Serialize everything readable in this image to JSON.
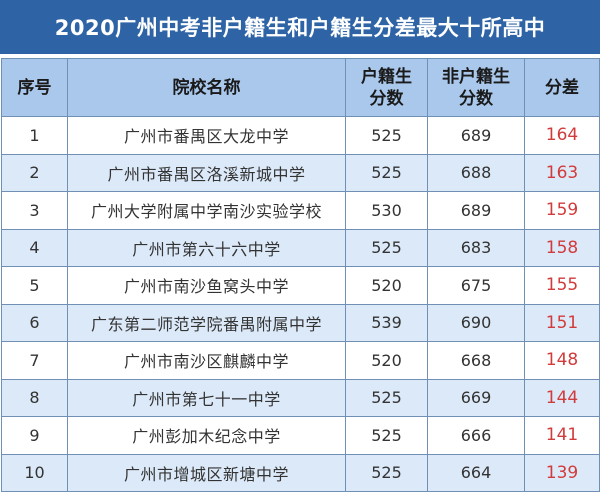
{
  "title": "2020广州中考非户籍生和户籍生分差最大十所高中",
  "headers": {
    "index": "序号",
    "school": "院校名称",
    "local_line1": "户籍生",
    "local_line2": "分数",
    "nonlocal_line1": "非户籍生",
    "nonlocal_line2": "分数",
    "diff": "分差"
  },
  "rows": [
    {
      "index": "1",
      "school": "广州市番禺区大龙中学",
      "local": "525",
      "nonlocal": "689",
      "diff": "164"
    },
    {
      "index": "2",
      "school": "广州市番禺区洛溪新城中学",
      "local": "525",
      "nonlocal": "688",
      "diff": "163"
    },
    {
      "index": "3",
      "school": "广州大学附属中学南沙实验学校",
      "local": "530",
      "nonlocal": "689",
      "diff": "159"
    },
    {
      "index": "4",
      "school": "广州市第六十六中学",
      "local": "525",
      "nonlocal": "683",
      "diff": "158"
    },
    {
      "index": "5",
      "school": "广州市南沙鱼窝头中学",
      "local": "520",
      "nonlocal": "675",
      "diff": "155"
    },
    {
      "index": "6",
      "school": "广东第二师范学院番禺附属中学",
      "local": "539",
      "nonlocal": "690",
      "diff": "151"
    },
    {
      "index": "7",
      "school": "广州市南沙区麒麟中学",
      "local": "520",
      "nonlocal": "668",
      "diff": "148"
    },
    {
      "index": "8",
      "school": "广州市第七十一中学",
      "local": "525",
      "nonlocal": "669",
      "diff": "144"
    },
    {
      "index": "9",
      "school": "广州彭加木纪念中学",
      "local": "525",
      "nonlocal": "666",
      "diff": "141"
    },
    {
      "index": "10",
      "school": "广州市增城区新塘中学",
      "local": "525",
      "nonlocal": "664",
      "diff": "139"
    }
  ],
  "colors": {
    "title_bg": "#2e64a5",
    "header_bg": "#a9c8ec",
    "stripe_bg": "#dce9f8",
    "diff_text": "#d23b3b"
  }
}
